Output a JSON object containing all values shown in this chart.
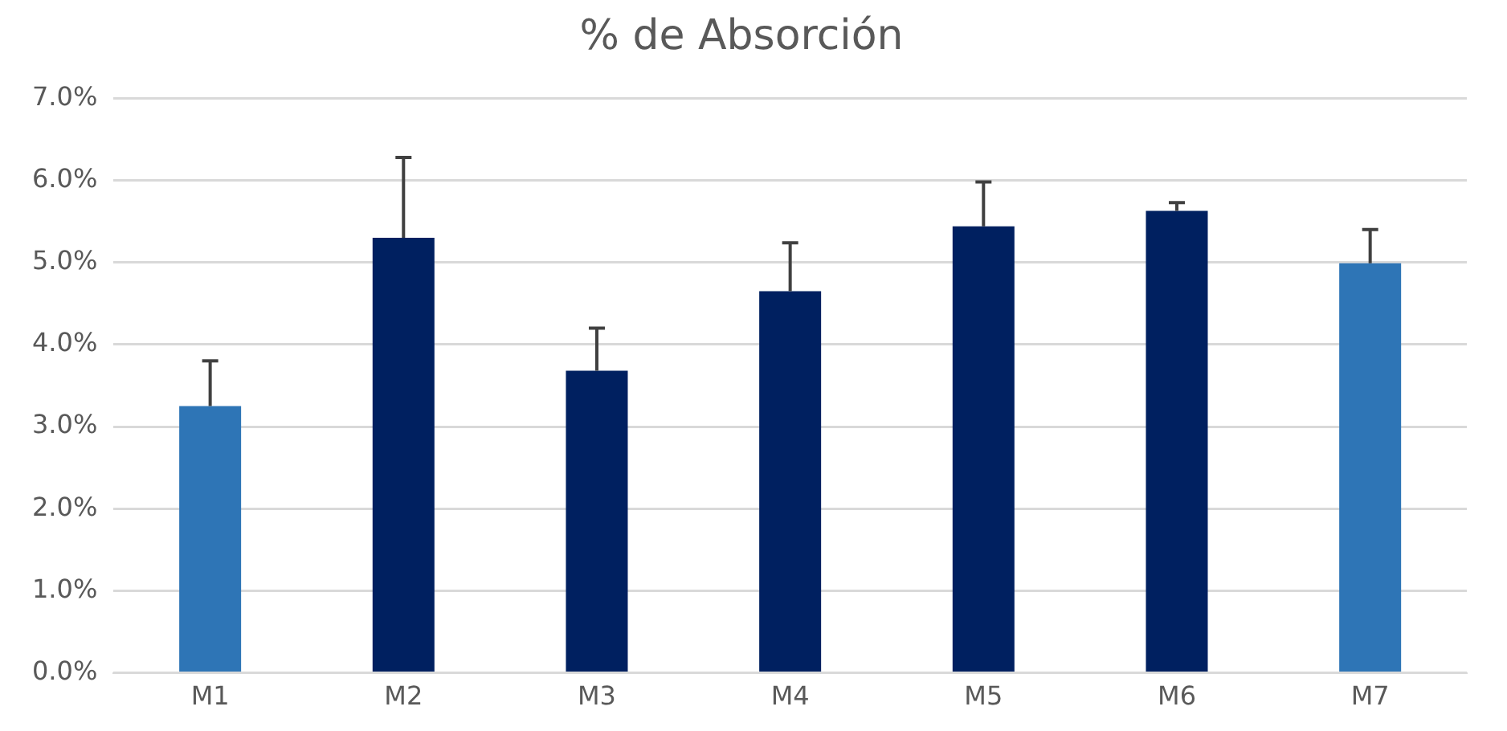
{
  "chart_data": {
    "type": "bar",
    "title": "% de Absorción",
    "categories": [
      "M1",
      "M2",
      "M3",
      "M4",
      "M5",
      "M6",
      "M7"
    ],
    "values": [
      3.25,
      5.3,
      3.68,
      4.65,
      5.44,
      5.63,
      4.99
    ],
    "colors": [
      "#2e75b6",
      "#002060",
      "#002060",
      "#002060",
      "#002060",
      "#002060",
      "#2e75b6"
    ],
    "errors": [
      [
        3.25,
        3.8
      ],
      [
        5.3,
        6.28
      ],
      [
        3.68,
        4.2
      ],
      [
        4.65,
        5.24
      ],
      [
        5.44,
        5.98
      ],
      [
        5.63,
        5.73
      ],
      [
        4.99,
        5.4
      ]
    ],
    "ylim": [
      0,
      7
    ],
    "yticks": [
      {
        "value": 0,
        "label": "0.0%"
      },
      {
        "value": 1,
        "label": "1.0%"
      },
      {
        "value": 2,
        "label": "2.0%"
      },
      {
        "value": 3,
        "label": "3.0%"
      },
      {
        "value": 4,
        "label": "4.0%"
      },
      {
        "value": 5,
        "label": "5.0%"
      },
      {
        "value": 6,
        "label": "6.0%"
      },
      {
        "value": 7,
        "label": "7.0%"
      }
    ],
    "grid": "y",
    "legend": false
  }
}
